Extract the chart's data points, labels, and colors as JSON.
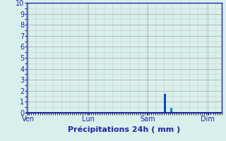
{
  "xlabel": "Précipitations 24h ( mm )",
  "ylim": [
    0,
    10
  ],
  "yticks": [
    0,
    1,
    2,
    3,
    4,
    5,
    6,
    7,
    8,
    9,
    10
  ],
  "xtick_labels": [
    "Ven",
    "Lun",
    "Sam",
    "Dim"
  ],
  "xtick_positions": [
    0,
    28,
    56,
    84
  ],
  "total_bars": 91,
  "bar_data": [
    {
      "index": 64,
      "value": 1.75,
      "color": "#1144cc"
    },
    {
      "index": 67,
      "value": 0.45,
      "color": "#1188cc"
    }
  ],
  "background_color": "#d8f0ec",
  "grid_color": "#aaaaaa",
  "grid_minor_color": "#cccccc",
  "axis_color": "#2222aa",
  "tick_label_color": "#2222aa",
  "title_color": "#2222aa",
  "title_fontsize": 8,
  "tick_fontsize": 7,
  "bar_width": 0.9
}
